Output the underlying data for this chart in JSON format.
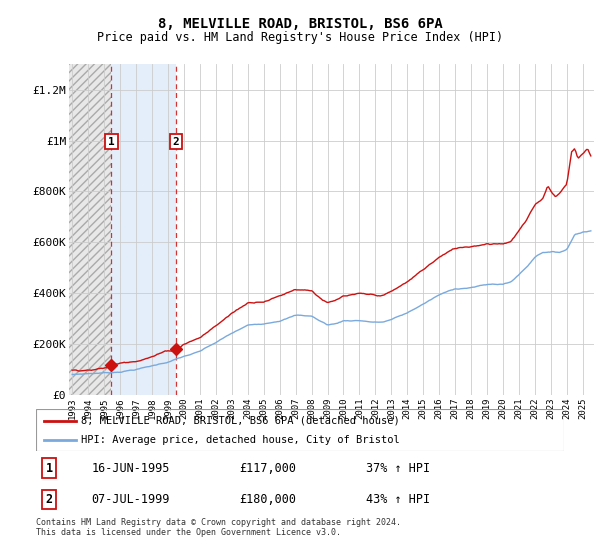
{
  "title": "8, MELVILLE ROAD, BRISTOL, BS6 6PA",
  "subtitle": "Price paid vs. HM Land Registry's House Price Index (HPI)",
  "footer": "Contains HM Land Registry data © Crown copyright and database right 2024.\nThis data is licensed under the Open Government Licence v3.0.",
  "legend_line1": "8, MELVILLE ROAD, BRISTOL, BS6 6PA (detached house)",
  "legend_line2": "HPI: Average price, detached house, City of Bristol",
  "sale1_date": "16-JUN-1995",
  "sale1_price": 117000,
  "sale1_hpi_text": "37% ↑ HPI",
  "sale1_year": 1995.454,
  "sale2_date": "07-JUL-1999",
  "sale2_price": 180000,
  "sale2_hpi_text": "43% ↑ HPI",
  "sale2_year": 1999.519,
  "ylim": [
    0,
    1300000
  ],
  "xlim_start": 1992.8,
  "xlim_end": 2025.7,
  "hpi_color": "#7aaadd",
  "price_color": "#cc1111",
  "yticks": [
    0,
    200000,
    400000,
    600000,
    800000,
    1000000,
    1200000
  ],
  "ytick_labels": [
    "£0",
    "£200K",
    "£400K",
    "£600K",
    "£800K",
    "£1M",
    "£1.2M"
  ],
  "grid_color": "#cccccc",
  "hatch_color": "#cccccc",
  "shade_color": "#d8e8f8"
}
